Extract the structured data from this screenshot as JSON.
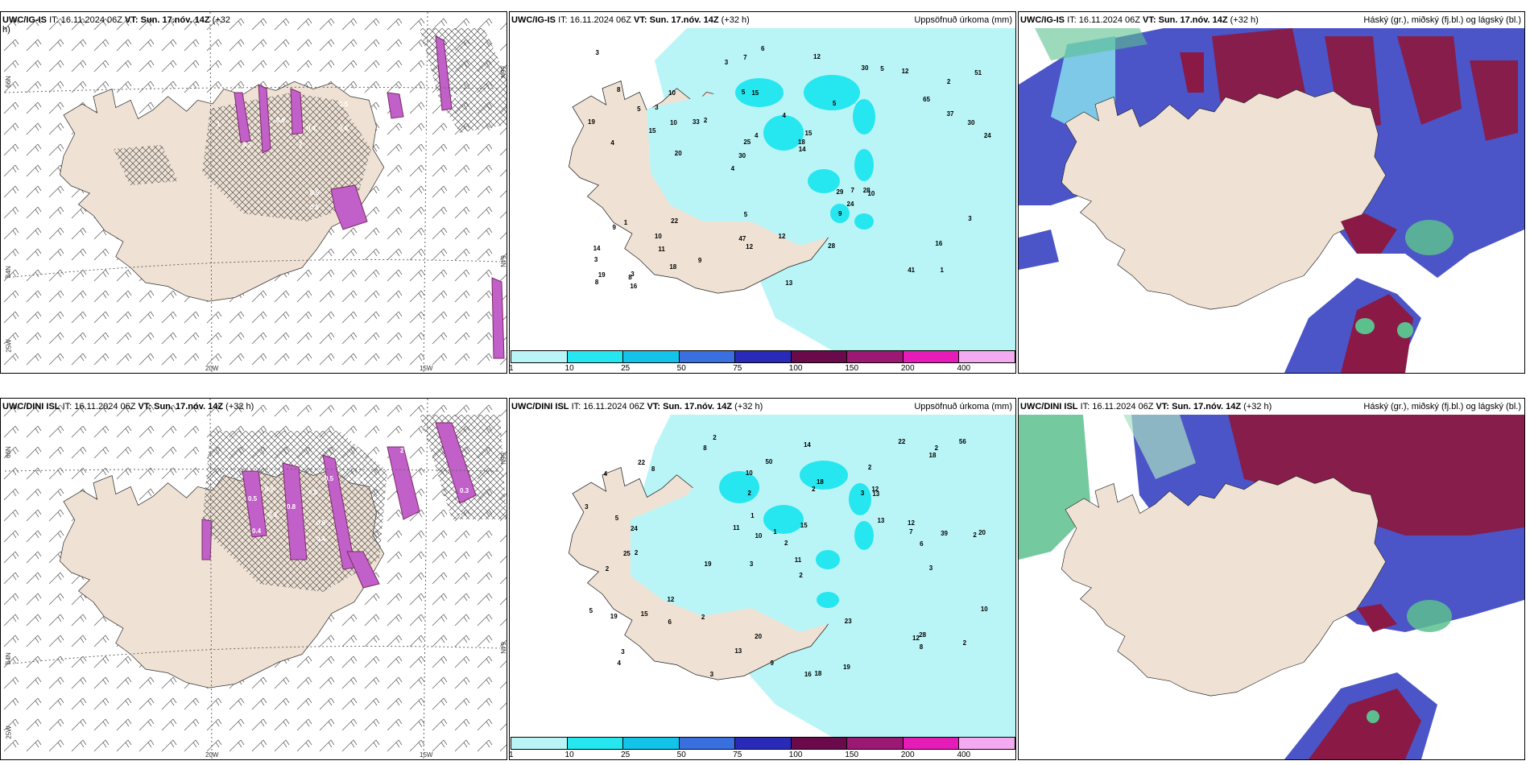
{
  "colors": {
    "land": "#efe2d4",
    "precip_light": "#b9f5f7",
    "precip_med": "#26e7ef",
    "magenta": "#c060c8",
    "dark_purple": "#7d2a66",
    "blue_cloud": "#4b55c8",
    "maroon": "#8a1a45",
    "green": "#5cbf8e"
  },
  "panels": [
    {
      "id": "top-left",
      "title_prefix": "UWC/IG-IS",
      "title_it": "IT: 16.11.2024 06Z",
      "title_vt": "VT: Sun. 17.nóv. 14Z",
      "title_lead": "(+32",
      "title_lead2": "h)",
      "axis_labels": [
        "66N",
        "64N",
        "25W",
        "20W",
        "15W",
        "66N",
        "64N"
      ],
      "values": [
        "0.5",
        "0.9",
        "0.6",
        "0.8",
        "0.9",
        "0.7",
        "0.5",
        "0.5",
        "0.6",
        "2",
        "1",
        "0.2",
        "0.9",
        "0.6"
      ]
    },
    {
      "id": "top-middle",
      "title_prefix": "UWC/IG-IS",
      "title_it": "IT: 16.11.2024 06Z",
      "title_vt": "VT: Sun. 17.nóv. 14Z",
      "title_lead": "(+32 h)",
      "right_label": "Uppsöfnuð úrkoma (mm)",
      "values": [
        "1",
        "4",
        "2",
        "4",
        "5",
        "3",
        "5",
        "4",
        "1",
        "2",
        "3",
        "11",
        "15",
        "15",
        "10",
        "8",
        "7",
        "24",
        "29",
        "37",
        "30",
        "47",
        "25",
        "10",
        "30",
        "22",
        "41",
        "16",
        "28",
        "13",
        "33",
        "15",
        "9",
        "18",
        "30",
        "18",
        "19",
        "12",
        "14",
        "9",
        "65",
        "51",
        "24",
        "28",
        "10",
        "16",
        "8",
        "12",
        "12",
        "6",
        "20",
        "19",
        "3",
        "5",
        "8",
        "12",
        "3",
        "4",
        "3",
        "5",
        "9",
        "7",
        "10",
        "14",
        "3",
        "5"
      ],
      "colorbar": [
        "1",
        "10",
        "25",
        "50",
        "75",
        "100",
        "150",
        "200",
        "400"
      ]
    },
    {
      "id": "top-right",
      "title_prefix": "UWC/IG-IS",
      "title_it": "IT: 16.11.2024 06Z",
      "title_vt": "VT: Sun. 17.nóv. 14Z",
      "title_lead": "(+32 h)",
      "right_label": "Háský (gr.), miðský (fj.bl.) og lágský (bl.)"
    },
    {
      "id": "bottom-left",
      "title_prefix": "UWC/DINI ISL",
      "title_it": "IT: 16.11.2024 06Z",
      "title_vt": "VT: Sun. 17.nóv. 14Z",
      "title_lead": "(+32 h)",
      "axis_labels": [
        "66N",
        "64N",
        "25W",
        "20W",
        "15W",
        "66N",
        "64N"
      ],
      "values": [
        "0.5",
        "0.8",
        "0.9",
        "0.6",
        "0.4",
        "0.3",
        "0.5",
        "0.4",
        "0.7",
        "0.9",
        "2",
        "0.3",
        "0.5"
      ]
    },
    {
      "id": "bottom-middle",
      "title_prefix": "UWC/DINI ISL",
      "title_it": "IT: 16.11.2024 06Z",
      "title_vt": "VT: Sun. 17.nóv. 14Z",
      "title_lead": "(+32 h)",
      "right_label": "Uppsöfnuð úrkoma (mm)",
      "values": [
        "2",
        "2",
        "2",
        "3",
        "2",
        "2",
        "4",
        "3",
        "2",
        "2",
        "2",
        "4",
        "8",
        "19",
        "16",
        "18",
        "20",
        "22",
        "13",
        "12",
        "24",
        "25",
        "20",
        "39",
        "5",
        "5",
        "10",
        "7",
        "28",
        "19",
        "12",
        "18",
        "15",
        "11",
        "23",
        "10",
        "12",
        "13",
        "56",
        "50",
        "3",
        "3",
        "19",
        "22",
        "9",
        "13",
        "8",
        "12",
        "3",
        "11",
        "10",
        "6",
        "15",
        "18",
        "14",
        "6",
        "1",
        "1",
        "2",
        "2",
        "2",
        "3",
        "8",
        "2"
      ],
      "colorbar": [
        "1",
        "10",
        "25",
        "50",
        "75",
        "100",
        "150",
        "200",
        "400"
      ]
    },
    {
      "id": "bottom-right",
      "title_prefix": "UWC/DINI ISL",
      "title_it": "IT: 16.11.2024 06Z",
      "title_vt": "VT: Sun. 17.nóv. 14Z",
      "title_lead": "(+32 h)",
      "right_label": "Háský (gr.), miðský (fj.bl.) og lágský (bl.)"
    }
  ],
  "colorbar_colors": [
    "#b9f5f7",
    "#26e7ef",
    "#13c3ea",
    "#3a6fe0",
    "#2a2ab8",
    "#6a0a4a",
    "#9b1873",
    "#e61cb8",
    "#f4aaf0"
  ]
}
